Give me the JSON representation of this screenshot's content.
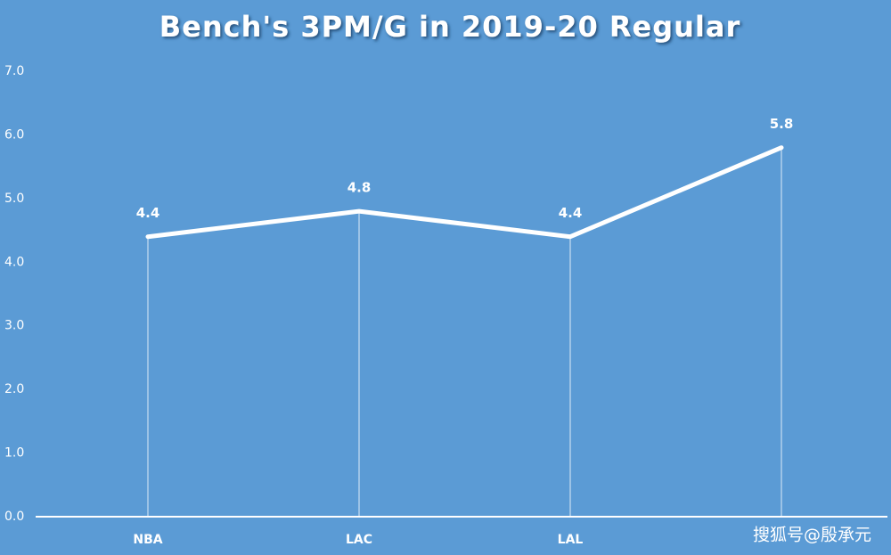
{
  "chart_data": {
    "type": "line",
    "title": "Bench's 3PM/G in 2019-20 Regular",
    "categories": [
      "NBA",
      "LAC",
      "LAL",
      null
    ],
    "values": [
      4.4,
      4.8,
      4.4,
      5.8
    ],
    "color": "#ffffff",
    "ylim": [
      0,
      7
    ],
    "yticks": [
      {
        "value": 0,
        "label": "0.0"
      },
      {
        "value": 1,
        "label": "1.0"
      },
      {
        "value": 2,
        "label": "2.0"
      },
      {
        "value": 3,
        "label": "3.0"
      },
      {
        "value": 4,
        "label": "4.0"
      },
      {
        "value": 5,
        "label": "5.0"
      },
      {
        "value": 6,
        "label": "6.0"
      },
      {
        "value": 7,
        "label": "7.0"
      }
    ],
    "drop_lines": true,
    "watermark": "搜狐号@殷承元"
  }
}
